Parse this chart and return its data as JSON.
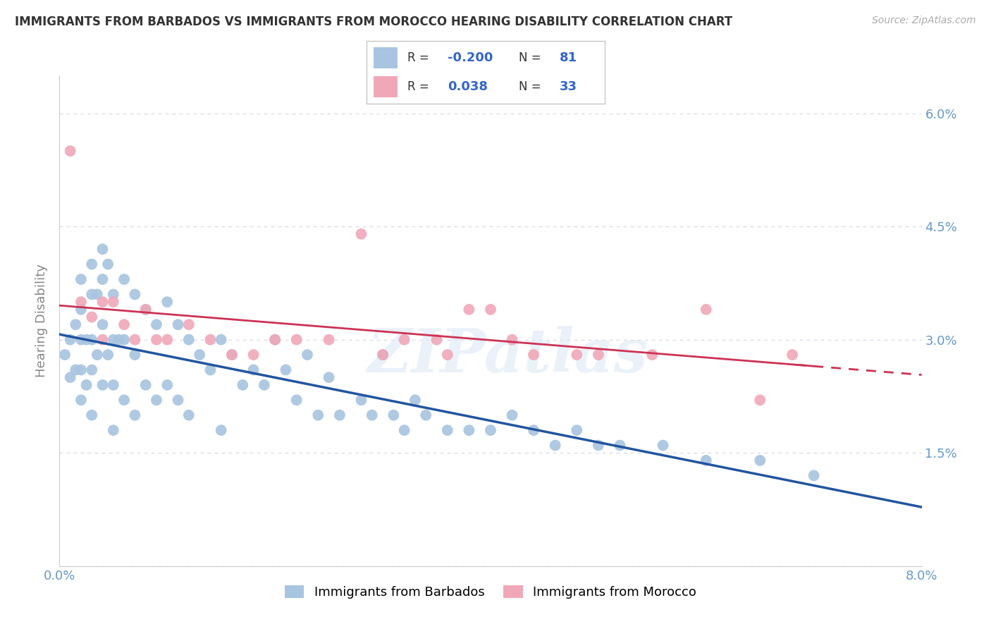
{
  "title": "IMMIGRANTS FROM BARBADOS VS IMMIGRANTS FROM MOROCCO HEARING DISABILITY CORRELATION CHART",
  "source": "Source: ZipAtlas.com",
  "ylabel": "Hearing Disability",
  "xmin": 0.0,
  "xmax": 0.08,
  "ymin": 0.0,
  "ymax": 0.065,
  "blue_R": -0.2,
  "blue_N": 81,
  "pink_R": 0.038,
  "pink_N": 33,
  "blue_color": "#a8c4e0",
  "pink_color": "#f0a8b8",
  "blue_line_color": "#2255a0",
  "pink_line_color": "#cc3355",
  "legend_label_blue": "Immigrants from Barbados",
  "legend_label_pink": "Immigrants from Morocco",
  "blue_x": [
    0.0005,
    0.001,
    0.001,
    0.0015,
    0.0015,
    0.002,
    0.002,
    0.002,
    0.002,
    0.002,
    0.0025,
    0.0025,
    0.003,
    0.003,
    0.003,
    0.003,
    0.003,
    0.0035,
    0.0035,
    0.004,
    0.004,
    0.004,
    0.004,
    0.0045,
    0.0045,
    0.005,
    0.005,
    0.005,
    0.005,
    0.0055,
    0.006,
    0.006,
    0.006,
    0.007,
    0.007,
    0.007,
    0.008,
    0.008,
    0.009,
    0.009,
    0.01,
    0.01,
    0.011,
    0.011,
    0.012,
    0.012,
    0.013,
    0.014,
    0.015,
    0.015,
    0.016,
    0.017,
    0.018,
    0.019,
    0.02,
    0.021,
    0.022,
    0.023,
    0.024,
    0.025,
    0.026,
    0.028,
    0.029,
    0.03,
    0.031,
    0.032,
    0.033,
    0.034,
    0.036,
    0.038,
    0.04,
    0.042,
    0.044,
    0.046,
    0.048,
    0.05,
    0.052,
    0.056,
    0.06,
    0.065,
    0.07
  ],
  "blue_y": [
    0.028,
    0.03,
    0.025,
    0.032,
    0.026,
    0.038,
    0.034,
    0.03,
    0.026,
    0.022,
    0.03,
    0.024,
    0.04,
    0.036,
    0.03,
    0.026,
    0.02,
    0.036,
    0.028,
    0.042,
    0.038,
    0.032,
    0.024,
    0.04,
    0.028,
    0.036,
    0.03,
    0.024,
    0.018,
    0.03,
    0.038,
    0.03,
    0.022,
    0.036,
    0.028,
    0.02,
    0.034,
    0.024,
    0.032,
    0.022,
    0.035,
    0.024,
    0.032,
    0.022,
    0.03,
    0.02,
    0.028,
    0.026,
    0.03,
    0.018,
    0.028,
    0.024,
    0.026,
    0.024,
    0.03,
    0.026,
    0.022,
    0.028,
    0.02,
    0.025,
    0.02,
    0.022,
    0.02,
    0.028,
    0.02,
    0.018,
    0.022,
    0.02,
    0.018,
    0.018,
    0.018,
    0.02,
    0.018,
    0.016,
    0.018,
    0.016,
    0.016,
    0.016,
    0.014,
    0.014,
    0.012
  ],
  "pink_x": [
    0.001,
    0.002,
    0.003,
    0.004,
    0.004,
    0.005,
    0.006,
    0.007,
    0.008,
    0.009,
    0.01,
    0.012,
    0.014,
    0.016,
    0.018,
    0.02,
    0.022,
    0.025,
    0.028,
    0.03,
    0.032,
    0.035,
    0.036,
    0.038,
    0.04,
    0.042,
    0.044,
    0.048,
    0.05,
    0.055,
    0.06,
    0.065,
    0.068
  ],
  "pink_y": [
    0.055,
    0.035,
    0.033,
    0.035,
    0.03,
    0.035,
    0.032,
    0.03,
    0.034,
    0.03,
    0.03,
    0.032,
    0.03,
    0.028,
    0.028,
    0.03,
    0.03,
    0.03,
    0.044,
    0.028,
    0.03,
    0.03,
    0.028,
    0.034,
    0.034,
    0.03,
    0.028,
    0.028,
    0.028,
    0.028,
    0.034,
    0.022,
    0.028
  ],
  "watermark": "ZIPatlas",
  "grid_color": "#d8d8e8",
  "background_color": "#ffffff",
  "title_color": "#333333",
  "tick_color": "#6699cc",
  "source_color": "#aaaaaa",
  "ylabel_color": "#888888"
}
